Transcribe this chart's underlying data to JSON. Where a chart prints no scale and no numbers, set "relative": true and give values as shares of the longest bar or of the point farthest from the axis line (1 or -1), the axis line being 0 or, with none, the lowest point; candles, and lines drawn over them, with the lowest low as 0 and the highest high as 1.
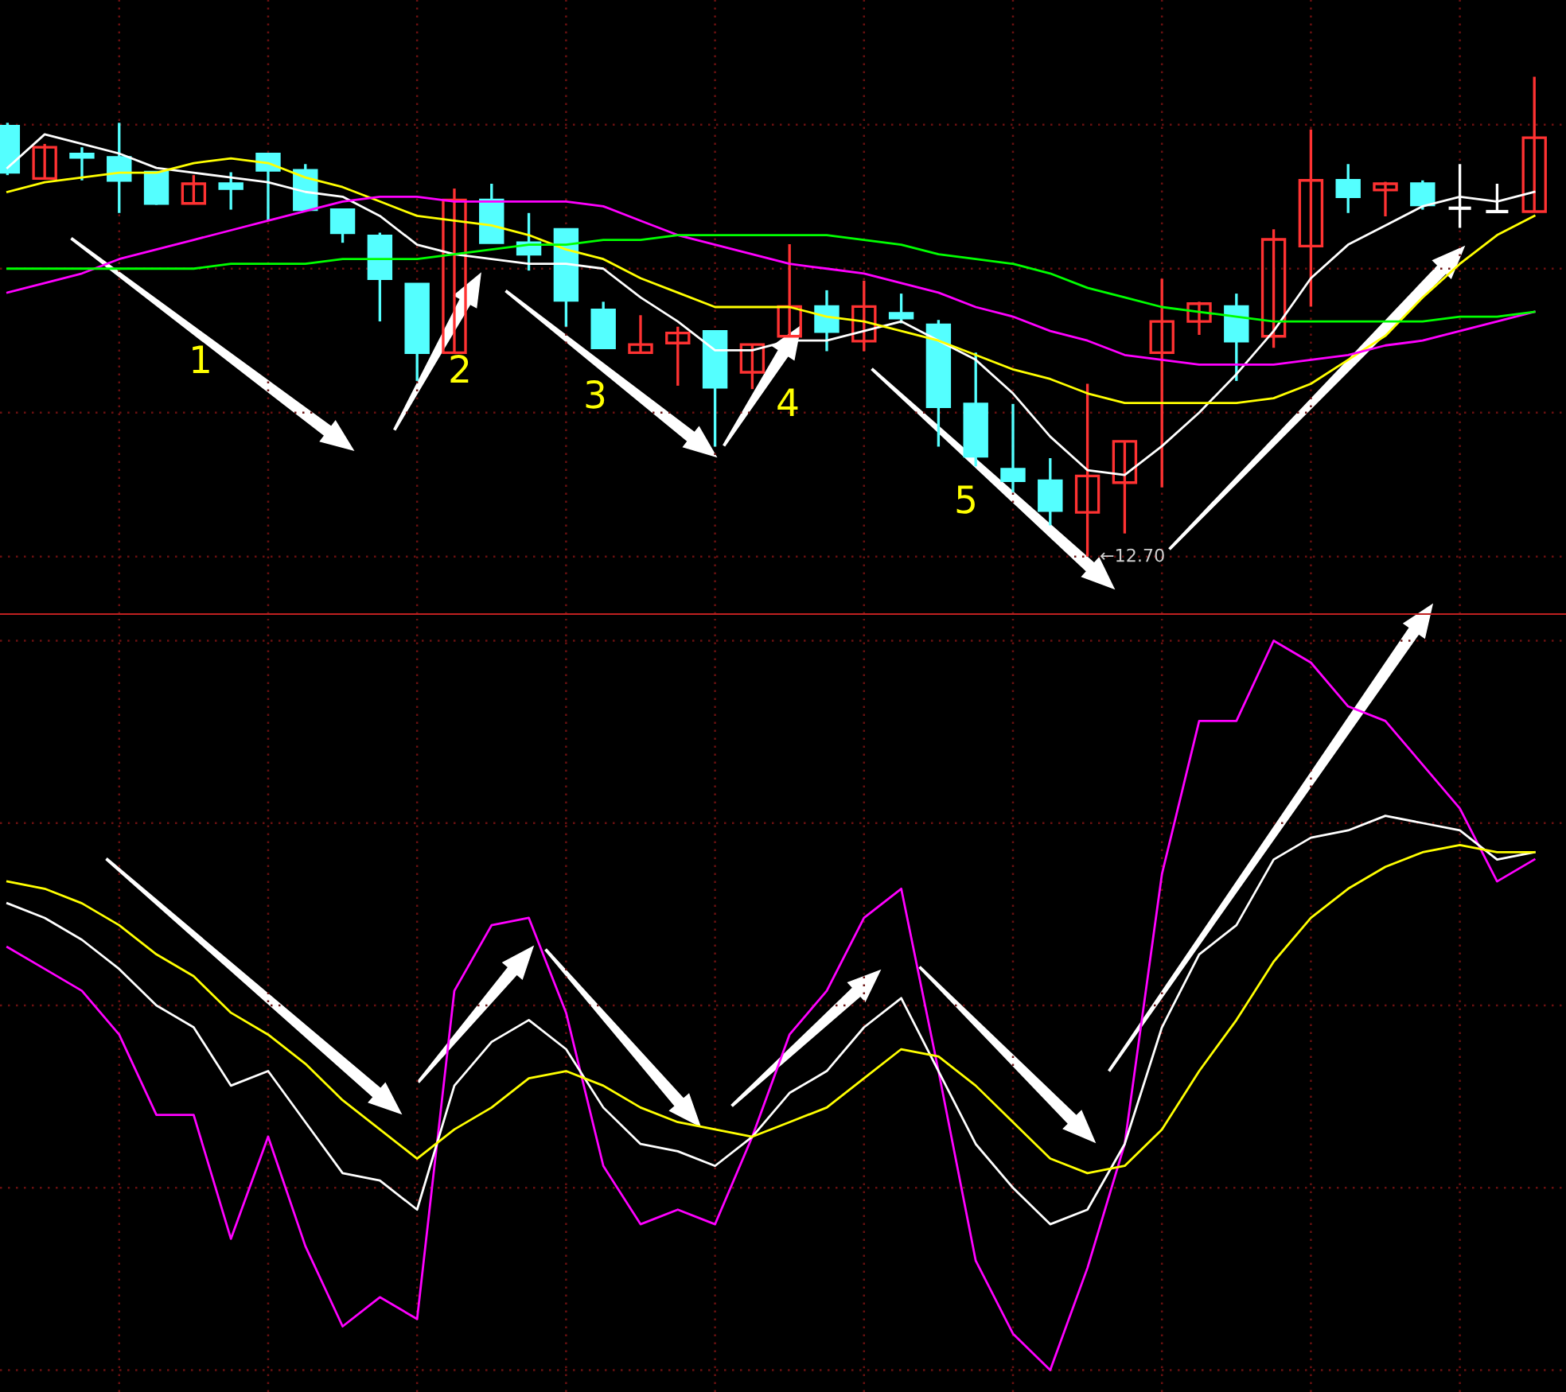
{
  "chart_data": [
    {
      "type": "candlestick",
      "relative": true,
      "grid": true,
      "categories": [
        null,
        null,
        null,
        null,
        null,
        null,
        null,
        null,
        null,
        null,
        null,
        null,
        null,
        null,
        null,
        null,
        null,
        null,
        null,
        null,
        null,
        null,
        null,
        null,
        null,
        null,
        null,
        null,
        null,
        null,
        null,
        null,
        null,
        null,
        null,
        null,
        null,
        null,
        null,
        null,
        null,
        null
      ],
      "ohlc": [
        [
          0.897,
          0.904,
          0.795,
          0.801
        ],
        [
          0.788,
          0.86,
          0.788,
          0.853
        ],
        [
          0.839,
          0.853,
          0.784,
          0.832
        ],
        [
          0.832,
          0.904,
          0.716,
          0.784
        ],
        [
          0.801,
          0.801,
          0.733,
          0.736
        ],
        [
          0.736,
          0.795,
          0.736,
          0.777
        ],
        [
          0.777,
          0.801,
          0.723,
          0.767
        ],
        [
          0.839,
          0.839,
          0.699,
          0.805
        ],
        [
          0.805,
          0.818,
          0.723,
          0.723
        ],
        [
          0.723,
          0.723,
          0.654,
          0.675
        ],
        [
          0.668,
          0.675,
          0.49,
          0.579
        ],
        [
          0.568,
          0.568,
          0.366,
          0.425
        ],
        [
          0.425,
          0.767,
          0.425,
          0.743
        ],
        [
          0.743,
          0.777,
          0.654,
          0.654
        ],
        [
          0.654,
          0.716,
          0.596,
          0.63
        ],
        [
          0.682,
          0.682,
          0.479,
          0.534
        ],
        [
          0.514,
          0.531,
          0.435,
          0.435
        ],
        [
          0.425,
          0.503,
          0.425,
          0.442
        ],
        [
          0.445,
          0.479,
          0.356,
          0.466
        ],
        [
          0.469,
          0.469,
          0.229,
          0.353
        ],
        [
          0.384,
          0.442,
          0.349,
          0.442
        ],
        [
          0.459,
          0.651,
          0.459,
          0.521
        ],
        [
          0.521,
          0.555,
          0.428,
          0.469
        ],
        [
          0.449,
          0.575,
          0.428,
          0.521
        ],
        [
          0.507,
          0.548,
          0.486,
          0.497
        ],
        [
          0.483,
          0.493,
          0.229,
          0.312
        ],
        [
          0.318,
          0.425,
          0.188,
          0.209
        ],
        [
          0.182,
          0.318,
          0.134,
          0.158
        ],
        [
          0.158,
          0.205,
          0.065,
          0.096
        ],
        [
          0.092,
          0.36,
          0,
          0.168
        ],
        [
          0.154,
          0.24,
          0.048,
          0.24
        ],
        [
          0.425,
          0.579,
          0.144,
          0.49
        ],
        [
          0.49,
          0.531,
          0.462,
          0.527
        ],
        [
          0.521,
          0.548,
          0.366,
          0.449
        ],
        [
          0.459,
          0.682,
          0.435,
          0.661
        ],
        [
          0.647,
          0.89,
          0.521,
          0.784
        ],
        [
          0.784,
          0.818,
          0.716,
          0.75
        ],
        [
          0.764,
          0.781,
          0.709,
          0.777
        ],
        [
          0.777,
          0.784,
          0.723,
          0.733
        ],
        [
          0.726,
          0.818,
          0.685,
          0.726
        ],
        [
          0.719,
          0.777,
          0.716,
          0.719
        ],
        [
          0.719,
          1,
          0.719,
          0.873
        ]
      ],
      "colors": [
        "#54ffff",
        "#ff3232",
        "#54ffff",
        "#54ffff",
        "#54ffff",
        "#ff3232",
        "#54ffff",
        "#54ffff",
        "#54ffff",
        "#54ffff",
        "#54ffff",
        "#54ffff",
        "#ff3232",
        "#54ffff",
        "#54ffff",
        "#54ffff",
        "#54ffff",
        "#ff3232",
        "#ff3232",
        "#54ffff",
        "#ff3232",
        "#ff3232",
        "#54ffff",
        "#ff3232",
        "#54ffff",
        "#54ffff",
        "#54ffff",
        "#54ffff",
        "#54ffff",
        "#ff3232",
        "#ff3232",
        "#ff3232",
        "#ff3232",
        "#54ffff",
        "#ff3232",
        "#ff3232",
        "#54ffff",
        "#ff3232",
        "#54ffff",
        "#ffffff",
        "#ffffff",
        "#ff3232"
      ],
      "series": [
        {
          "type": "line",
          "color": "#ffffff",
          "values": [
            0.81,
            0.88,
            0.86,
            0.84,
            0.81,
            0.8,
            0.79,
            0.78,
            0.76,
            0.75,
            0.71,
            0.65,
            0.63,
            0.62,
            0.61,
            0.61,
            0.6,
            0.54,
            0.49,
            0.43,
            0.43,
            0.45,
            0.45,
            0.47,
            0.49,
            0.45,
            0.41,
            0.34,
            0.25,
            0.18,
            0.17,
            0.23,
            0.3,
            0.38,
            0.47,
            0.58,
            0.65,
            0.69,
            0.73,
            0.75,
            0.74,
            0.76
          ]
        },
        {
          "type": "line",
          "color": "#ffff00",
          "values": [
            0.76,
            0.78,
            0.79,
            0.8,
            0.8,
            0.82,
            0.83,
            0.82,
            0.79,
            0.77,
            0.74,
            0.71,
            0.7,
            0.69,
            0.67,
            0.64,
            0.62,
            0.58,
            0.55,
            0.52,
            0.52,
            0.52,
            0.5,
            0.49,
            0.47,
            0.45,
            0.42,
            0.39,
            0.37,
            0.34,
            0.32,
            0.32,
            0.32,
            0.32,
            0.33,
            0.36,
            0.41,
            0.46,
            0.54,
            0.61,
            0.67,
            0.71
          ]
        },
        {
          "type": "line",
          "color": "#ff00ff",
          "values": [
            0.55,
            0.57,
            0.59,
            0.62,
            0.64,
            0.66,
            0.68,
            0.7,
            0.72,
            0.74,
            0.75,
            0.75,
            0.74,
            0.74,
            0.74,
            0.74,
            0.73,
            0.7,
            0.67,
            0.65,
            0.63,
            0.61,
            0.6,
            0.59,
            0.57,
            0.55,
            0.52,
            0.5,
            0.47,
            0.45,
            0.42,
            0.41,
            0.4,
            0.4,
            0.4,
            0.41,
            0.42,
            0.44,
            0.45,
            0.47,
            0.49,
            0.51
          ]
        },
        {
          "type": "line",
          "color": "#00ff00",
          "values": [
            0.6,
            0.6,
            0.6,
            0.6,
            0.6,
            0.6,
            0.61,
            0.61,
            0.61,
            0.62,
            0.62,
            0.62,
            0.63,
            0.64,
            0.65,
            0.65,
            0.66,
            0.66,
            0.67,
            0.67,
            0.67,
            0.67,
            0.67,
            0.66,
            0.65,
            0.63,
            0.62,
            0.61,
            0.59,
            0.56,
            0.54,
            0.52,
            0.51,
            0.5,
            0.49,
            0.49,
            0.49,
            0.49,
            0.49,
            0.5,
            0.5,
            0.51
          ]
        }
      ],
      "annotations": [
        "1",
        "2",
        "3",
        "4",
        "5",
        "←12.70"
      ]
    },
    {
      "type": "line",
      "relative": true,
      "grid": true,
      "categories": [
        null,
        null,
        null,
        null,
        null,
        null,
        null,
        null,
        null,
        null,
        null,
        null,
        null,
        null,
        null,
        null,
        null,
        null,
        null,
        null,
        null,
        null,
        null,
        null,
        null,
        null,
        null,
        null,
        null,
        null,
        null,
        null,
        null,
        null,
        null,
        null,
        null,
        null,
        null,
        null,
        null,
        null
      ],
      "series": [
        {
          "color": "#ff00ff",
          "values": [
            0.58,
            0.55,
            0.52,
            0.46,
            0.35,
            0.35,
            0.18,
            0.32,
            0.17,
            0.06,
            0.1,
            0.07,
            0.52,
            0.61,
            0.62,
            0.49,
            0.28,
            0.2,
            0.22,
            0.2,
            0.32,
            0.46,
            0.52,
            0.62,
            0.66,
            0.41,
            0.15,
            0.05,
            0,
            0.14,
            0.31,
            0.68,
            0.89,
            0.89,
            1,
            0.97,
            0.91,
            0.89,
            0.83,
            0.77,
            0.67,
            0.7
          ]
        },
        {
          "color": "#ffffff",
          "values": [
            0.64,
            0.62,
            0.59,
            0.55,
            0.5,
            0.47,
            0.39,
            0.41,
            0.34,
            0.27,
            0.26,
            0.22,
            0.39,
            0.45,
            0.48,
            0.44,
            0.36,
            0.31,
            0.3,
            0.28,
            0.32,
            0.38,
            0.41,
            0.47,
            0.51,
            0.41,
            0.31,
            0.25,
            0.2,
            0.22,
            0.31,
            0.47,
            0.57,
            0.61,
            0.7,
            0.73,
            0.74,
            0.76,
            0.75,
            0.74,
            0.7,
            0.71
          ]
        },
        {
          "color": "#ffff00",
          "values": [
            0.67,
            0.66,
            0.64,
            0.61,
            0.57,
            0.54,
            0.49,
            0.46,
            0.42,
            0.37,
            0.33,
            0.29,
            0.33,
            0.36,
            0.4,
            0.41,
            0.39,
            0.36,
            0.34,
            0.33,
            0.32,
            0.34,
            0.36,
            0.4,
            0.44,
            0.43,
            0.39,
            0.34,
            0.29,
            0.27,
            0.28,
            0.33,
            0.41,
            0.48,
            0.56,
            0.62,
            0.66,
            0.69,
            0.71,
            0.72,
            0.71,
            0.71
          ]
        }
      ]
    }
  ]
}
